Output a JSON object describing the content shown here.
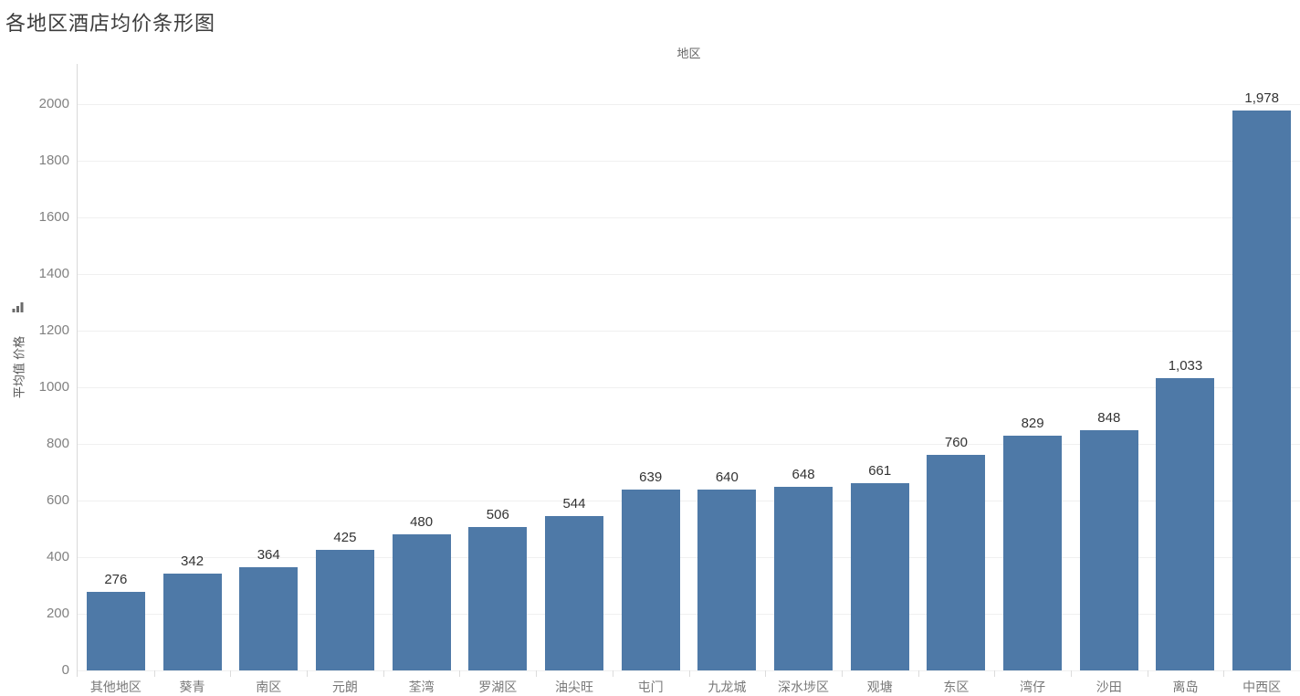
{
  "chart_data": {
    "type": "bar",
    "title": "各地区酒店均价条形图",
    "x_axis_title": "地区",
    "y_axis_label": "平均值 价格",
    "categories": [
      "其他地区",
      "葵青",
      "南区",
      "元朗",
      "荃湾",
      "罗湖区",
      "油尖旺",
      "屯门",
      "九龙城",
      "深水埗区",
      "观塘",
      "东区",
      "湾仔",
      "沙田",
      "离岛",
      "中西区"
    ],
    "values": [
      276,
      342,
      364,
      425,
      480,
      506,
      544,
      639,
      640,
      648,
      661,
      760,
      829,
      848,
      1033,
      1978
    ],
    "value_labels": [
      "276",
      "342",
      "364",
      "425",
      "480",
      "506",
      "544",
      "639",
      "640",
      "648",
      "661",
      "760",
      "829",
      "848",
      "1,033",
      "1,978"
    ],
    "y_ticks": [
      0,
      200,
      400,
      600,
      800,
      1000,
      1200,
      1400,
      1600,
      1800,
      2000
    ],
    "ylim": [
      0,
      2142
    ],
    "grid": "horizontal",
    "legend_position": "none",
    "sort_order": "ascending",
    "colors": {
      "bar": "#4e79a7",
      "grid_line": "#f0f0f0",
      "axis_line": "#d9d9d9",
      "tick_label": "#818181",
      "category_label": "#787878",
      "value_label": "#333333",
      "title": "#3c3c3c",
      "sort_icon": "#6b6b6b"
    }
  }
}
